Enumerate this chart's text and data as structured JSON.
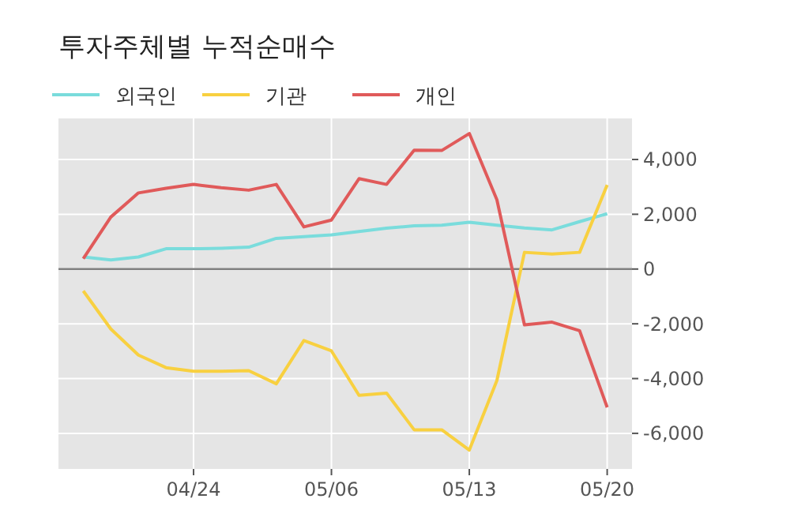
{
  "chart_data": {
    "type": "line",
    "title": "투자주체별 누적순매수",
    "categories": [
      null,
      null,
      null,
      null,
      "04/24",
      null,
      null,
      null,
      null,
      "05/06",
      null,
      null,
      null,
      null,
      "05/13",
      null,
      null,
      null,
      null,
      "05/20"
    ],
    "series": [
      {
        "name": "외국인",
        "color": "#7adcdc",
        "values": [
          440,
          330,
          440,
          740,
          740,
          760,
          800,
          1120,
          1180,
          1250,
          1370,
          1490,
          1580,
          1600,
          1710,
          1600,
          1500,
          1430,
          1730,
          2020
        ]
      },
      {
        "name": "기관",
        "color": "#f8d040",
        "values": [
          -800,
          -2190,
          -3140,
          -3600,
          -3730,
          -3730,
          -3710,
          -4190,
          -2610,
          -2990,
          -4610,
          -4530,
          -5870,
          -5870,
          -6610,
          -4070,
          610,
          550,
          610,
          3070
        ]
      },
      {
        "name": "개인",
        "color": "#e05a5a",
        "values": [
          380,
          1900,
          2780,
          2950,
          3090,
          2970,
          2880,
          3090,
          1540,
          1790,
          3300,
          3090,
          4340,
          4330,
          4950,
          2530,
          -2040,
          -1940,
          -2250,
          -5050
        ]
      }
    ],
    "ylim": [
      -7300,
      5500
    ],
    "yticks": [
      {
        "value": -6000,
        "label": "-6,000"
      },
      {
        "value": -4000,
        "label": "-4,000"
      },
      {
        "value": -2000,
        "label": "-2,000"
      },
      0,
      {
        "value": 2000,
        "label": "2,000"
      },
      {
        "value": 4000,
        "label": "4,000"
      }
    ],
    "grid": true,
    "legend": "top left",
    "marker": "none",
    "line_style": "solid",
    "ref_lines": [
      {
        "axis": "y",
        "value": 0,
        "color": "#808080"
      }
    ]
  }
}
